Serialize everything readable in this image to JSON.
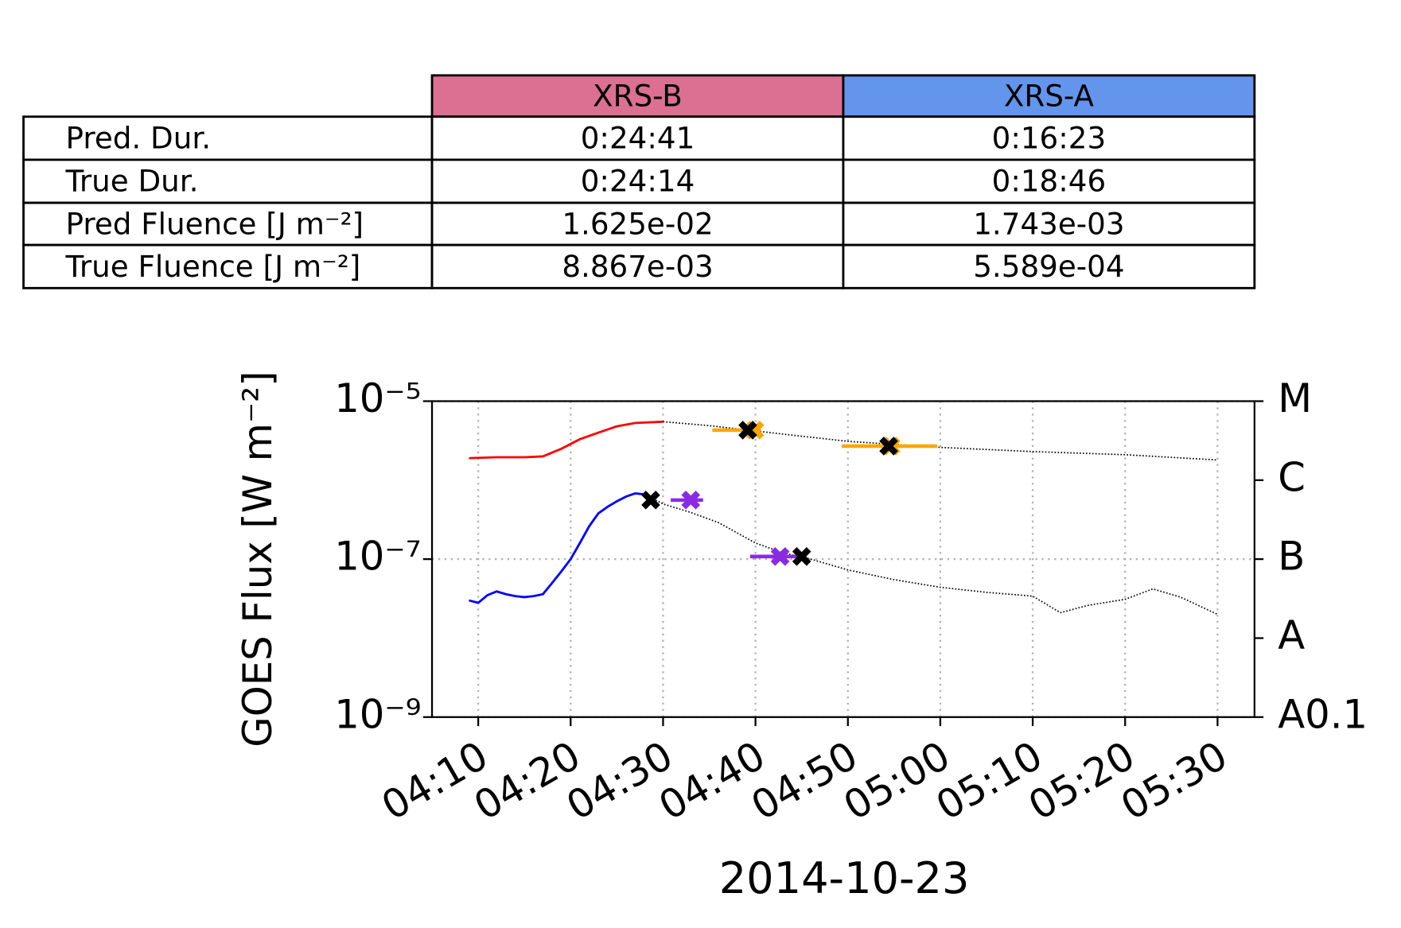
{
  "table": {
    "columns": [
      "XRS-B",
      "XRS-A"
    ],
    "column_colors": [
      "#db7093",
      "#6495ed"
    ],
    "rows": [
      {
        "label": "Pred. Dur.",
        "cells": [
          "0:24:41",
          "0:16:23"
        ]
      },
      {
        "label": "True Dur.",
        "cells": [
          "0:24:14",
          "0:18:46"
        ]
      },
      {
        "label": "Pred Fluence [J m⁻²]",
        "cells": [
          "1.625e-02",
          "1.743e-03"
        ]
      },
      {
        "label": "True Fluence [J m⁻²]",
        "cells": [
          "8.867e-03",
          "5.589e-04"
        ]
      }
    ]
  },
  "chart_data": {
    "type": "line",
    "ylabel": "GOES Flux [W m⁻²]",
    "xlabel": "2014-10-23",
    "y_log": true,
    "grid": true,
    "xlim": [
      "04:05",
      "05:34"
    ],
    "xticks": [
      "04:10",
      "04:20",
      "04:30",
      "04:40",
      "04:50",
      "05:00",
      "05:10",
      "05:20",
      "05:30"
    ],
    "ylim": [
      1e-09,
      1e-05
    ],
    "yticks": [
      {
        "value": 1e-09,
        "label": "10⁻⁹"
      },
      {
        "value": 1e-07,
        "label": "10⁻⁷"
      },
      {
        "value": 1e-05,
        "label": "10⁻⁵"
      }
    ],
    "y2lim": [
      1e-09,
      1e-05
    ],
    "y2ticks": [
      {
        "value": 1e-09,
        "label": "A0.1"
      },
      {
        "value": 1e-08,
        "label": "A"
      },
      {
        "value": 1e-07,
        "label": "B"
      },
      {
        "value": 1e-06,
        "label": "C"
      },
      {
        "value": 1e-05,
        "label": "M"
      }
    ],
    "series": [
      {
        "color": "#ff0000",
        "line_style": "solid",
        "x": [
          "04:09",
          "04:12",
          "04:15",
          "04:17",
          "04:19",
          "04:21",
          "04:23",
          "04:25",
          "04:27",
          "04:30"
        ],
        "values": [
          1.9e-06,
          1.95e-06,
          1.95e-06,
          2e-06,
          2.5e-06,
          3.3e-06,
          4e-06,
          4.8e-06,
          5.3e-06,
          5.5e-06
        ]
      },
      {
        "color": "#000000",
        "line_style": "dotted",
        "x": [
          "04:30",
          "04:35",
          "04:40",
          "04:45",
          "04:50",
          "05:00",
          "05:10",
          "05:20",
          "05:30"
        ],
        "values": [
          5.5e-06,
          4.9e-06,
          4.2e-06,
          3.6e-06,
          3.1e-06,
          2.6e-06,
          2.3e-06,
          2.1e-06,
          1.8e-06
        ]
      },
      {
        "color": "#0000ff",
        "line_style": "solid",
        "x": [
          "04:09",
          "04:10",
          "04:11",
          "04:12",
          "04:13",
          "04:14",
          "04:15",
          "04:16",
          "04:17",
          "04:18",
          "04:19",
          "04:20",
          "04:21",
          "04:22",
          "04:23",
          "04:24",
          "04:25",
          "04:26",
          "04:27",
          "04:28"
        ],
        "values": [
          3e-08,
          2.8e-08,
          3.5e-08,
          3.9e-08,
          3.6e-08,
          3.4e-08,
          3.3e-08,
          3.4e-08,
          3.6e-08,
          5e-08,
          7e-08,
          1e-07,
          1.6e-07,
          2.6e-07,
          3.8e-07,
          4.6e-07,
          5.4e-07,
          6.2e-07,
          6.8e-07,
          6.6e-07
        ]
      },
      {
        "color": "#000000",
        "line_style": "dotted",
        "x": [
          "04:28",
          "04:30",
          "04:33",
          "04:36",
          "04:40",
          "04:43",
          "04:46",
          "04:50",
          "04:55",
          "05:00",
          "05:05",
          "05:10",
          "05:13",
          "05:16",
          "05:20",
          "05:23",
          "05:26",
          "05:30"
        ],
        "values": [
          6.6e-07,
          5e-07,
          3.9e-07,
          2.9e-07,
          1.6e-07,
          1.2e-07,
          1e-07,
          7.3e-08,
          5.5e-08,
          4.4e-08,
          3.8e-08,
          3.4e-08,
          2.1e-08,
          2.6e-08,
          3.1e-08,
          4.2e-08,
          3.3e-08,
          2e-08
        ]
      },
      {
        "color": "#ffa500",
        "marker": "x",
        "x": [
          "04:39:55",
          "04:54:40"
        ],
        "values": [
          4.3e-06,
          2.7e-06
        ],
        "xerr_low": [
          "04:35:20",
          "04:49:20"
        ],
        "xerr_high": [
          "04:40:35",
          "04:59:40"
        ]
      },
      {
        "color": "#8a2be2",
        "marker": "x",
        "x": [
          "04:33:00",
          "04:42:40"
        ],
        "values": [
          5.6e-07,
          1.08e-07
        ],
        "xerr_low": [
          "04:30:50",
          "04:39:25"
        ],
        "xerr_high": [
          "04:34:20",
          "04:45:10"
        ]
      },
      {
        "color": "#000000",
        "marker": "x",
        "x": [
          "04:39:10",
          "04:54:25",
          "04:28:40",
          "04:45:00"
        ],
        "values": [
          4.3e-06,
          2.7e-06,
          5.6e-07,
          1.08e-07
        ]
      }
    ]
  }
}
